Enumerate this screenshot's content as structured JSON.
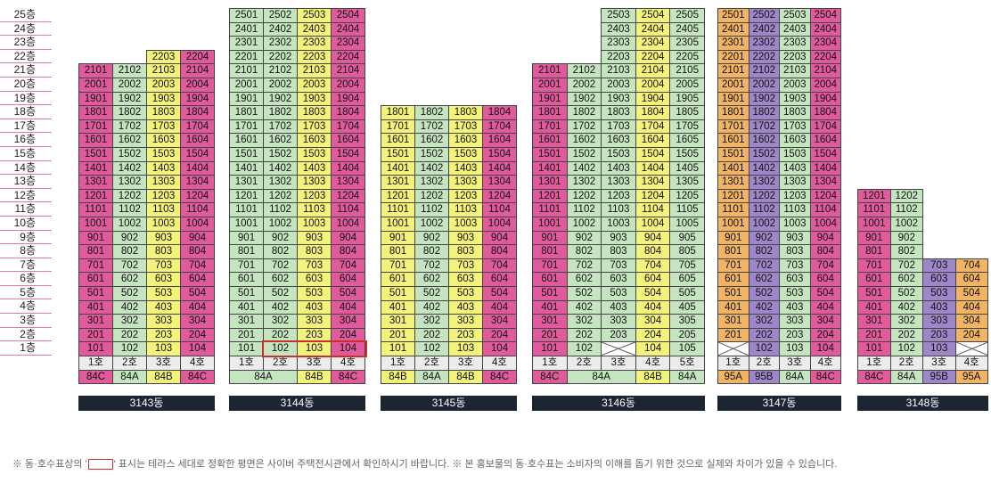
{
  "floor_labels": [
    "25층",
    "24층",
    "23층",
    "22층",
    "21층",
    "20층",
    "19층",
    "18층",
    "17층",
    "16층",
    "15층",
    "14층",
    "13층",
    "12층",
    "11층",
    "10층",
    "9층",
    "8층",
    "7층",
    "6층",
    "5층",
    "4층",
    "3층",
    "2층",
    "1층"
  ],
  "colors": {
    "P": "#e05a9c",
    "Y": "#f3f37b",
    "G": "#c5e5c0",
    "O": "#f1b465",
    "V": "#9f86c9",
    "X": "#ffffff",
    "hoRow": "#ececec"
  },
  "buildings": [
    {
      "name": "3143동",
      "ho": [
        "1호",
        "2호",
        "3호",
        "4호"
      ],
      "types": [
        "84C",
        "84A",
        "84B",
        "84C"
      ],
      "typeColors": [
        "P",
        "G",
        "Y",
        "P"
      ],
      "top": [
        21,
        21,
        22,
        22
      ],
      "skip1": [],
      "cols": [
        "P",
        "G",
        "Y",
        "P"
      ],
      "special": {}
    },
    {
      "name": "3144동",
      "ho": [
        "1호",
        "2호",
        "3호",
        "4호"
      ],
      "types": [
        "84A",
        "84A",
        "84B",
        "84C"
      ],
      "typeColors": [
        "G",
        "G",
        "Y",
        "P"
      ],
      "typeSpans": [
        [
          0,
          2
        ]
      ],
      "top": [
        25,
        25,
        25,
        25
      ],
      "skip1": [],
      "cols": [
        "G",
        "G",
        "Y",
        "P"
      ],
      "special": {}
    },
    {
      "name": "3145동",
      "ho": [
        "1호",
        "2호",
        "3호",
        "4호"
      ],
      "types": [
        "84B",
        "84A",
        "84B",
        "84C"
      ],
      "typeColors": [
        "Y",
        "G",
        "Y",
        "P"
      ],
      "top": [
        18,
        18,
        18,
        18
      ],
      "skip1": [],
      "cols": [
        "Y",
        "G",
        "Y",
        "P"
      ],
      "special": {}
    },
    {
      "name": "3146동",
      "ho": [
        "1호",
        "2호",
        "3호",
        "4호",
        "5호"
      ],
      "types": [
        "84C",
        "84A",
        "84A",
        "84B",
        "84A"
      ],
      "typeColors": [
        "P",
        "G",
        "G",
        "Y",
        "G"
      ],
      "typeSpans": [
        [
          1,
          3
        ]
      ],
      "top": [
        21,
        21,
        25,
        25,
        25
      ],
      "skip1": [
        2
      ],
      "cols": [
        "P",
        "G",
        "G",
        "Y",
        "G"
      ],
      "special": {}
    },
    {
      "name": "3147동",
      "ho": [
        "1호",
        "2호",
        "3호",
        "4호"
      ],
      "types": [
        "95A",
        "95B",
        "84A",
        "84C"
      ],
      "typeColors": [
        "O",
        "V",
        "G",
        "P"
      ],
      "top": [
        25,
        25,
        25,
        25
      ],
      "skip1": [
        0
      ],
      "cols": [
        "O",
        "V",
        "G",
        "P"
      ],
      "special": {}
    },
    {
      "name": "3148동",
      "ho": [
        "1호",
        "2호",
        "3호",
        "4호"
      ],
      "types": [
        "84C",
        "84A",
        "95B",
        "95A"
      ],
      "typeColors": [
        "P",
        "G",
        "V",
        "O"
      ],
      "top": [
        12,
        12,
        7,
        7
      ],
      "skip1": [
        3
      ],
      "cols": [
        "P",
        "G",
        "V",
        "O"
      ],
      "special": {}
    }
  ],
  "footer": {
    "pre": "※ 동·호수표상의 '",
    "post": "' 표시는 테라스 세대로 정확한 평면은 사이버 주택전시관에서 확인하시기 바랍니다. ※ 본 홍보물의 동·호수표는 소비자의 이해를 돕기 위한 것으로 실제와 차이가 있을 수 있습니다."
  }
}
